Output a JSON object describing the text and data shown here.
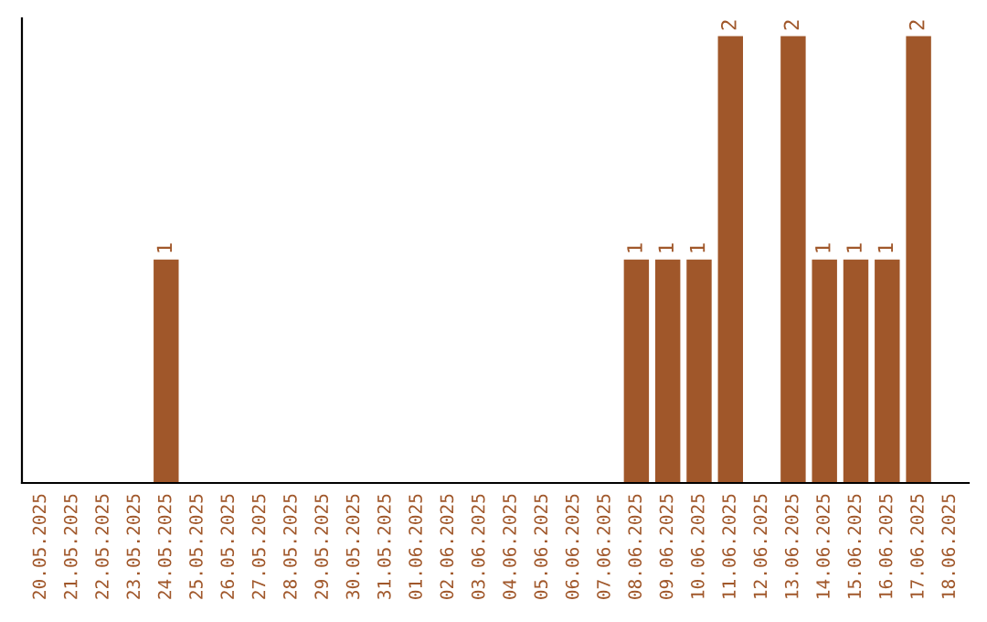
{
  "chart_data": {
    "type": "bar",
    "categories": [
      "20.05.2025",
      "21.05.2025",
      "22.05.2025",
      "23.05.2025",
      "24.05.2025",
      "25.05.2025",
      "26.05.2025",
      "27.05.2025",
      "28.05.2025",
      "29.05.2025",
      "30.05.2025",
      "31.05.2025",
      "01.06.2025",
      "02.06.2025",
      "03.06.2025",
      "04.06.2025",
      "05.06.2025",
      "06.06.2025",
      "07.06.2025",
      "08.06.2025",
      "09.06.2025",
      "10.06.2025",
      "11.06.2025",
      "12.06.2025",
      "13.06.2025",
      "14.06.2025",
      "15.06.2025",
      "16.06.2025",
      "17.06.2025",
      "18.06.2025"
    ],
    "values": [
      0,
      0,
      0,
      0,
      1,
      0,
      0,
      0,
      0,
      0,
      0,
      0,
      0,
      0,
      0,
      0,
      0,
      0,
      0,
      1,
      1,
      1,
      2,
      0,
      2,
      1,
      1,
      1,
      2,
      0
    ],
    "value_labels": [
      null,
      null,
      null,
      null,
      "1",
      null,
      null,
      null,
      null,
      null,
      null,
      null,
      null,
      null,
      null,
      null,
      null,
      null,
      null,
      "1",
      "1",
      "1",
      "2",
      null,
      "2",
      "1",
      "1",
      "1",
      "2",
      null
    ],
    "color": "#a0572a",
    "grid": false
  }
}
